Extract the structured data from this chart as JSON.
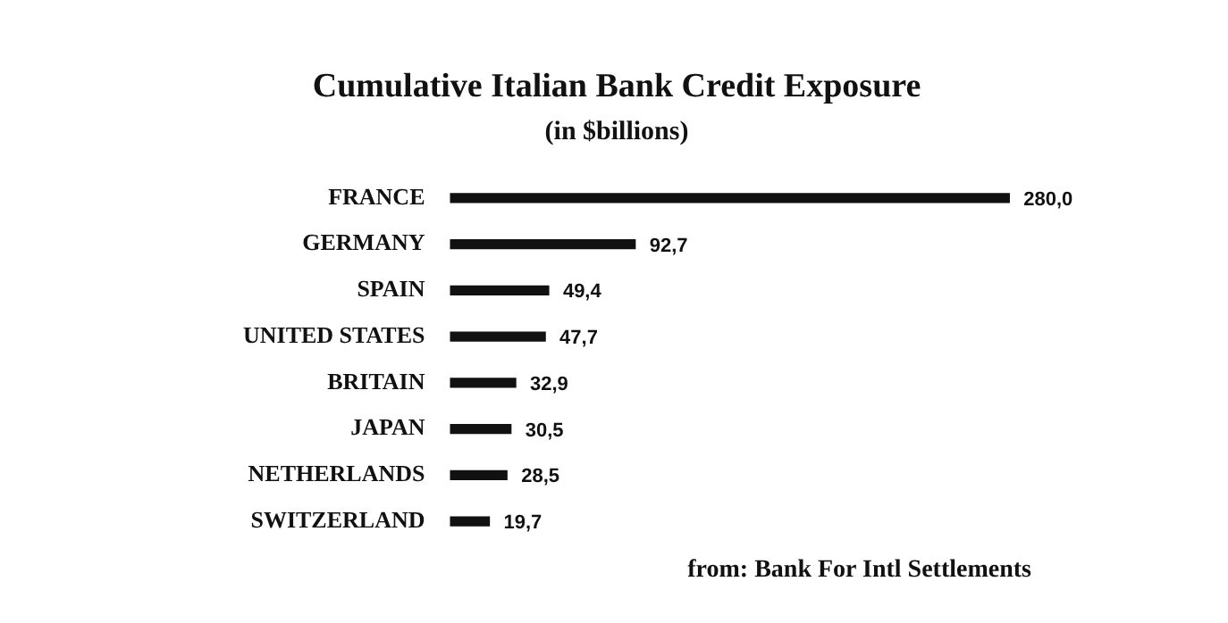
{
  "chart_data": {
    "type": "bar",
    "orientation": "horizontal",
    "title": "Cumulative Italian Bank Credit Exposure",
    "subtitle": "(in $billions)",
    "categories": [
      "FRANCE",
      "GERMANY",
      "SPAIN",
      "UNITED STATES",
      "BRITAIN",
      "JAPAN",
      "NETHERLANDS",
      "SWITZERLAND"
    ],
    "values": [
      280.0,
      92.7,
      49.4,
      47.7,
      32.9,
      30.5,
      28.5,
      19.7
    ],
    "value_labels": [
      "280,0",
      "92,7",
      "49,4",
      "47,7",
      "32,9",
      "30,5",
      "28,5",
      "19,7"
    ],
    "color": "#111111",
    "tick_labels": "y",
    "legend": false,
    "annotations": [
      "from: Bank For Intl Settlements"
    ]
  }
}
